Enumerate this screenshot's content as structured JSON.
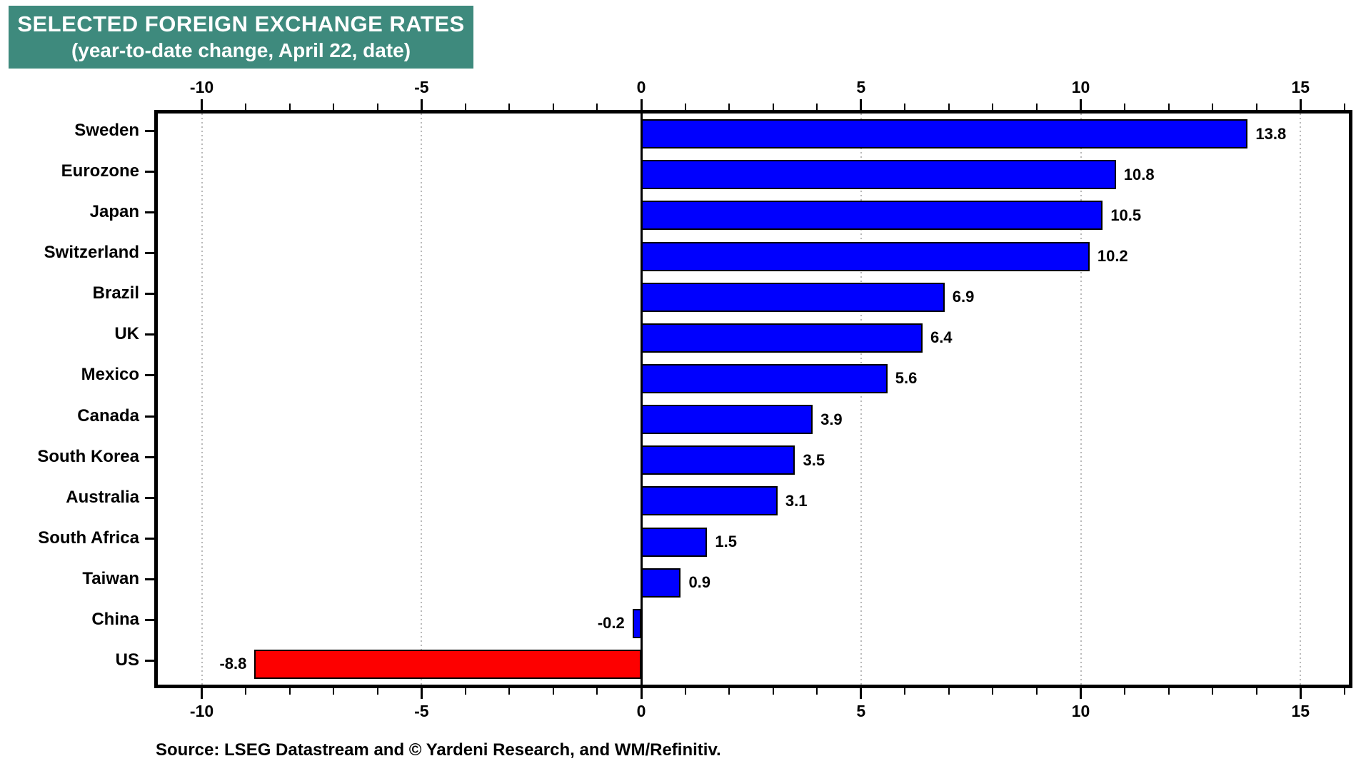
{
  "title": {
    "line1": "SELECTED FOREIGN EXCHANGE RATES",
    "line2": "(year-to-date change, April 22, date)"
  },
  "source": "Source: LSEG Datastream and © Yardeni Research, and WM/Refinitiv.",
  "colors": {
    "title_bg": "#3e8a7d",
    "title_text": "#ffffff",
    "bar_positive": "#0000fe",
    "bar_us_red": "#fd0000",
    "axis": "#000000",
    "grid": "#b9b9b9",
    "background": "#ffffff"
  },
  "chart_data": {
    "type": "bar",
    "orientation": "horizontal",
    "title": "SELECTED FOREIGN EXCHANGE RATES",
    "subtitle": "(year-to-date change, April 22, date)",
    "categories": [
      "Sweden",
      "Eurozone",
      "Japan",
      "Switzerland",
      "Brazil",
      "UK",
      "Mexico",
      "Canada",
      "South Korea",
      "Australia",
      "South Africa",
      "Taiwan",
      "China",
      "US"
    ],
    "values": [
      13.8,
      10.8,
      10.5,
      10.2,
      6.9,
      6.4,
      5.6,
      3.9,
      3.5,
      3.1,
      1.5,
      0.9,
      -0.2,
      -8.8
    ],
    "value_labels": [
      "13.8",
      "10.8",
      "10.5",
      "10.2",
      "6.9",
      "6.4",
      "5.6",
      "3.9",
      "3.5",
      "3.1",
      "1.5",
      "0.9",
      "-0.2",
      "-8.8"
    ],
    "bar_colors": [
      "#0000fe",
      "#0000fe",
      "#0000fe",
      "#0000fe",
      "#0000fe",
      "#0000fe",
      "#0000fe",
      "#0000fe",
      "#0000fe",
      "#0000fe",
      "#0000fe",
      "#0000fe",
      "#0000fe",
      "#fd0000"
    ],
    "xlabel": "",
    "ylabel": "",
    "xlim": [
      -11,
      16.1
    ],
    "x_major_ticks": [
      -10,
      -5,
      0,
      5,
      10,
      15
    ],
    "x_major_tick_labels": [
      "-10",
      "-5",
      "0",
      "5",
      "10",
      "15"
    ],
    "x_minor_tick_step": 1,
    "axes_shown": [
      "top",
      "bottom"
    ],
    "grid": "vertical dotted gridlines at major ticks, solid black line at zero",
    "legend": "none"
  }
}
